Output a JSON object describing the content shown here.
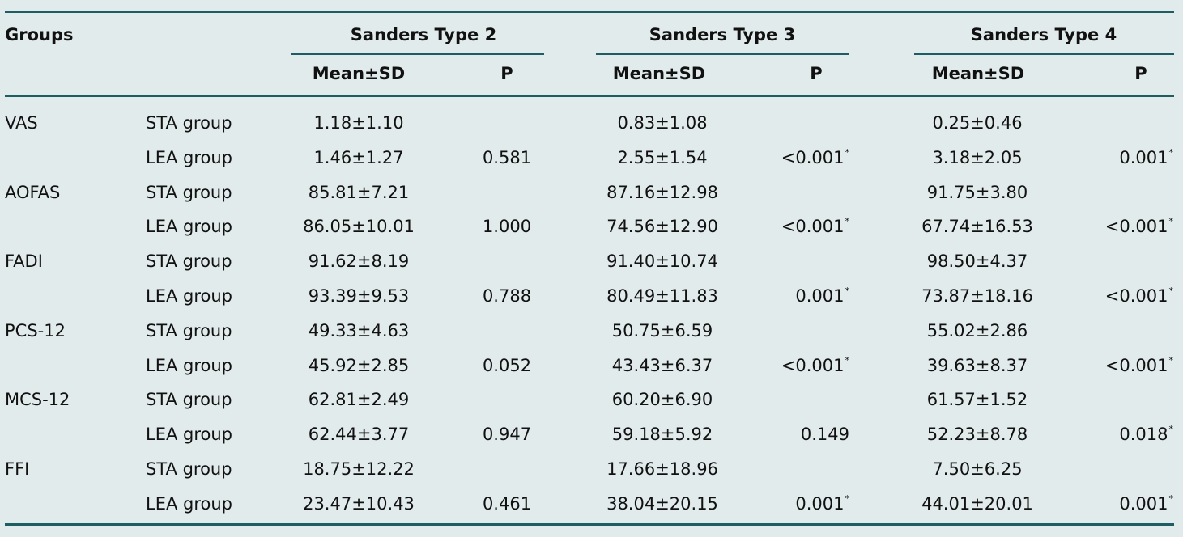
{
  "header": {
    "groups_label": "Groups",
    "sections": [
      {
        "title": "Sanders Type 2",
        "mean_label": "Mean±SD",
        "p_label": "P"
      },
      {
        "title": "Sanders Type 3",
        "mean_label": "Mean±SD",
        "p_label": "P"
      },
      {
        "title": "Sanders Type 4",
        "mean_label": "Mean±SD",
        "p_label": "P"
      }
    ]
  },
  "rows": [
    {
      "measure": "VAS",
      "group": "STA group",
      "t2_mean": "1.18±1.10",
      "t2_p": "",
      "t3_mean": "0.83±1.08",
      "t3_p": "",
      "t4_mean": "0.25±0.46",
      "t4_p": ""
    },
    {
      "measure": "",
      "group": "LEA group",
      "t2_mean": "1.46±1.27",
      "t2_p": "0.581",
      "t3_mean": "2.55±1.54",
      "t3_p": "<0.001",
      "t3_sig": "*",
      "t4_mean": "3.18±2.05",
      "t4_p": "0.001",
      "t4_sig": "*"
    },
    {
      "measure": "AOFAS",
      "group": "STA group",
      "t2_mean": "85.81±7.21",
      "t2_p": "",
      "t3_mean": "87.16±12.98",
      "t3_p": "",
      "t4_mean": "91.75±3.80",
      "t4_p": ""
    },
    {
      "measure": "",
      "group": "LEA group",
      "t2_mean": "86.05±10.01",
      "t2_p": "1.000",
      "t3_mean": "74.56±12.90",
      "t3_p": "<0.001",
      "t3_sig": "*",
      "t4_mean": "67.74±16.53",
      "t4_p": "<0.001",
      "t4_sig": "*"
    },
    {
      "measure": "FADI",
      "group": "STA group",
      "t2_mean": "91.62±8.19",
      "t2_p": "",
      "t3_mean": "91.40±10.74",
      "t3_p": "",
      "t4_mean": "98.50±4.37",
      "t4_p": ""
    },
    {
      "measure": "",
      "group": "LEA group",
      "t2_mean": "93.39±9.53",
      "t2_p": "0.788",
      "t3_mean": "80.49±11.83",
      "t3_p": "0.001",
      "t3_sig": "*",
      "t4_mean": "73.87±18.16",
      "t4_p": "<0.001",
      "t4_sig": "*"
    },
    {
      "measure": "PCS-12",
      "group": "STA group",
      "t2_mean": "49.33±4.63",
      "t2_p": "",
      "t3_mean": "50.75±6.59",
      "t3_p": "",
      "t4_mean": "55.02±2.86",
      "t4_p": ""
    },
    {
      "measure": "",
      "group": "LEA group",
      "t2_mean": "45.92±2.85",
      "t2_p": "0.052",
      "t3_mean": "43.43±6.37",
      "t3_p": "<0.001",
      "t3_sig": "*",
      "t4_mean": "39.63±8.37",
      "t4_p": "<0.001",
      "t4_sig": "*"
    },
    {
      "measure": "MCS-12",
      "group": "STA group",
      "t2_mean": "62.81±2.49",
      "t2_p": "",
      "t3_mean": "60.20±6.90",
      "t3_p": "",
      "t4_mean": "61.57±1.52",
      "t4_p": ""
    },
    {
      "measure": "",
      "group": "LEA group",
      "t2_mean": "62.44±3.77",
      "t2_p": "0.947",
      "t3_mean": "59.18±5.92",
      "t3_p": "0.149",
      "t4_mean": "52.23±8.78",
      "t4_p": "0.018",
      "t4_sig": "*"
    },
    {
      "measure": "FFI",
      "group": "STA group",
      "t2_mean": "18.75±12.22",
      "t2_p": "",
      "t3_mean": "17.66±18.96",
      "t3_p": "",
      "t4_mean": "7.50±6.25",
      "t4_p": ""
    },
    {
      "measure": "",
      "group": "LEA group",
      "t2_mean": "23.47±10.43",
      "t2_p": "0.461",
      "t3_mean": "38.04±20.15",
      "t3_p": "0.001",
      "t3_sig": "*",
      "t4_mean": "44.01±20.01",
      "t4_p": "0.001",
      "t4_sig": "*"
    }
  ]
}
